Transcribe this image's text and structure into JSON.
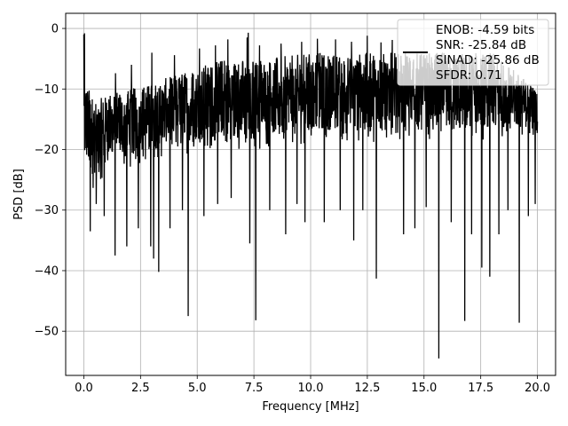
{
  "chart_data": {
    "type": "line",
    "title": "",
    "xlabel": "Frequency [MHz]",
    "ylabel": "PSD [dB]",
    "xlim": [
      -0.8,
      20.8
    ],
    "ylim": [
      -57.3,
      2.5
    ],
    "xticks": [
      0.0,
      2.5,
      5.0,
      7.5,
      10.0,
      12.5,
      15.0,
      17.5,
      20.0
    ],
    "xtick_labels": [
      "0.0",
      "2.5",
      "5.0",
      "7.5",
      "10.0",
      "12.5",
      "15.0",
      "17.5",
      "20.0"
    ],
    "yticks": [
      0,
      -10,
      -20,
      -30,
      -40,
      -50
    ],
    "ytick_labels": [
      "0",
      "−10",
      "−20",
      "−30",
      "−40",
      "−50"
    ],
    "grid": true,
    "legend_position": "top-right",
    "series_color": "#000000",
    "series": [
      {
        "legend_lines": [
          "ENOB: -4.59 bits",
          "SNR: -25.84 dB",
          "SINAD: -25.86 dB",
          "SFDR: 0.71"
        ],
        "x_range": [
          0.0,
          20.0
        ],
        "points": 2048,
        "band_low": [
          [
            0.0,
            -23
          ],
          [
            0.3,
            -27
          ],
          [
            1,
            -24
          ],
          [
            3,
            -22
          ],
          [
            6,
            -20
          ],
          [
            8,
            -20
          ],
          [
            10,
            -19
          ],
          [
            12,
            -19
          ],
          [
            14,
            -18.5
          ],
          [
            16,
            -18.5
          ],
          [
            18,
            -18.5
          ],
          [
            20,
            -17.5
          ]
        ],
        "band_high": [
          [
            0.0,
            -8
          ],
          [
            0.5,
            -12
          ],
          [
            1,
            -11
          ],
          [
            3,
            -9
          ],
          [
            6,
            -5
          ],
          [
            8,
            -5
          ],
          [
            10,
            -4
          ],
          [
            12,
            -4
          ],
          [
            14,
            -4
          ],
          [
            16,
            -4
          ],
          [
            18,
            -4
          ],
          [
            20,
            -10
          ]
        ],
        "start_value": -1,
        "deep_dips": [
          {
            "x": 0.28,
            "y": -33.5
          },
          {
            "x": 0.55,
            "y": -29
          },
          {
            "x": 0.9,
            "y": -31
          },
          {
            "x": 1.38,
            "y": -37.5
          },
          {
            "x": 1.9,
            "y": -36
          },
          {
            "x": 2.4,
            "y": -33
          },
          {
            "x": 2.95,
            "y": -36
          },
          {
            "x": 3.08,
            "y": -38
          },
          {
            "x": 3.3,
            "y": -40.2
          },
          {
            "x": 3.8,
            "y": -33
          },
          {
            "x": 4.35,
            "y": -30
          },
          {
            "x": 4.6,
            "y": -47.5
          },
          {
            "x": 5.3,
            "y": -31
          },
          {
            "x": 5.9,
            "y": -29
          },
          {
            "x": 6.5,
            "y": -28
          },
          {
            "x": 7.32,
            "y": -35.5
          },
          {
            "x": 7.58,
            "y": -48.2
          },
          {
            "x": 8.2,
            "y": -30
          },
          {
            "x": 8.9,
            "y": -34
          },
          {
            "x": 9.4,
            "y": -29
          },
          {
            "x": 9.75,
            "y": -32
          },
          {
            "x": 10.6,
            "y": -32
          },
          {
            "x": 11.3,
            "y": -30
          },
          {
            "x": 11.9,
            "y": -35
          },
          {
            "x": 12.3,
            "y": -30
          },
          {
            "x": 12.9,
            "y": -41.3
          },
          {
            "x": 13.6,
            "y": -31
          },
          {
            "x": 14.1,
            "y": -34
          },
          {
            "x": 14.6,
            "y": -33
          },
          {
            "x": 15.1,
            "y": -29.5
          },
          {
            "x": 15.65,
            "y": -54.5
          },
          {
            "x": 16.2,
            "y": -32
          },
          {
            "x": 16.8,
            "y": -48.3
          },
          {
            "x": 17.1,
            "y": -34
          },
          {
            "x": 17.55,
            "y": -39.5
          },
          {
            "x": 17.9,
            "y": -41
          },
          {
            "x": 18.3,
            "y": -34
          },
          {
            "x": 18.7,
            "y": -30
          },
          {
            "x": 19.2,
            "y": -48.6
          },
          {
            "x": 19.6,
            "y": -31
          },
          {
            "x": 19.9,
            "y": -29
          }
        ],
        "peaks": [
          {
            "x": 0.03,
            "y": -0.8
          },
          {
            "x": 1.4,
            "y": -7.4
          },
          {
            "x": 2.1,
            "y": -6
          },
          {
            "x": 3.0,
            "y": -4
          },
          {
            "x": 4.0,
            "y": -4.4
          },
          {
            "x": 5.1,
            "y": -3.3
          },
          {
            "x": 5.8,
            "y": -2.8
          },
          {
            "x": 6.35,
            "y": -1.8
          },
          {
            "x": 7.2,
            "y": -1.5
          },
          {
            "x": 7.25,
            "y": -0.7
          },
          {
            "x": 7.75,
            "y": -2.8
          },
          {
            "x": 8.7,
            "y": -2.5
          },
          {
            "x": 9.6,
            "y": -2.2
          },
          {
            "x": 10.3,
            "y": -1.7
          },
          {
            "x": 11.1,
            "y": -1.8
          },
          {
            "x": 11.8,
            "y": -2.2
          },
          {
            "x": 12.5,
            "y": -1.2
          },
          {
            "x": 13.1,
            "y": -2.3
          },
          {
            "x": 13.6,
            "y": -1.9
          }
        ]
      }
    ]
  }
}
